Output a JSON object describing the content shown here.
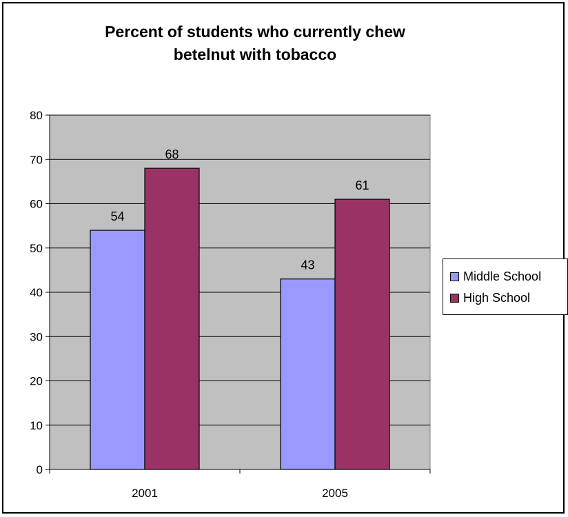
{
  "chart_data": {
    "type": "bar",
    "title_lines": [
      "Percent of students who currently chew",
      "betelnut with tobacco"
    ],
    "categories": [
      "2001",
      "2005"
    ],
    "series": [
      {
        "name": "Middle School",
        "values": [
          54,
          43
        ],
        "color": "#9999ff"
      },
      {
        "name": "High School",
        "values": [
          68,
          61
        ],
        "color": "#993366"
      }
    ],
    "ylim": [
      0,
      80
    ],
    "yticks": [
      "0",
      "10",
      "20",
      "30",
      "40",
      "50",
      "60",
      "70",
      "80"
    ],
    "grid": true,
    "plot_background": "#c0c0c0",
    "legend_position": "right"
  }
}
